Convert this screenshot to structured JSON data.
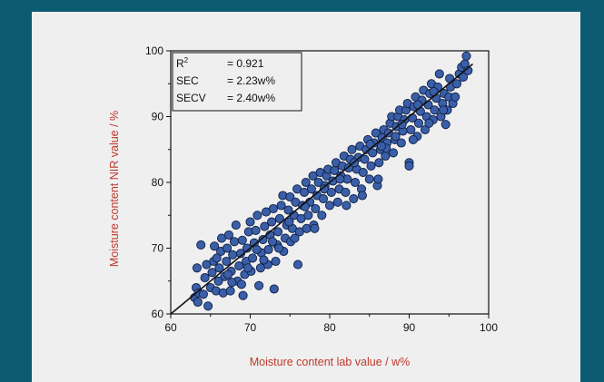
{
  "colors": {
    "background": "#0d5b73",
    "panel": "#efefef",
    "marker_fill": "#3a5fa8",
    "marker_stroke": "#0f1f45",
    "axis_title": "#c0392b",
    "fit_line": "#111111"
  },
  "chart_data": {
    "type": "scatter",
    "title": "",
    "xlabel": "Moisture content lab value / w%",
    "ylabel": "Moisture content NIR value / %",
    "xlim": [
      60,
      100
    ],
    "ylim": [
      60,
      100
    ],
    "x_ticks": [
      "60",
      "70",
      "80",
      "90",
      "100"
    ],
    "y_ticks": [
      "60",
      "70",
      "80",
      "90",
      "100"
    ],
    "grid": false,
    "legend_position": "top-left",
    "stats": [
      {
        "label": "R",
        "sup": "2",
        "value": "= 0.921"
      },
      {
        "label": "SEC",
        "sup": "",
        "value": "= 2.23w%"
      },
      {
        "label": "SECV",
        "sup": "",
        "value": "= 2.40w%"
      }
    ],
    "fit_line": {
      "x": [
        60,
        98
      ],
      "y": [
        60,
        98
      ]
    },
    "series": [
      {
        "marker": "circle",
        "points": [
          [
            63.0,
            62.5
          ],
          [
            63.2,
            64.0
          ],
          [
            63.4,
            61.8
          ],
          [
            63.5,
            63.2
          ],
          [
            63.3,
            67.0
          ],
          [
            63.8,
            70.5
          ],
          [
            64.1,
            63.0
          ],
          [
            64.3,
            65.5
          ],
          [
            64.5,
            67.5
          ],
          [
            64.7,
            61.2
          ],
          [
            65.0,
            64.0
          ],
          [
            65.2,
            66.3
          ],
          [
            65.4,
            68.0
          ],
          [
            65.5,
            70.3
          ],
          [
            65.7,
            63.5
          ],
          [
            66.0,
            65.0
          ],
          [
            66.1,
            67.0
          ],
          [
            66.3,
            69.5
          ],
          [
            66.4,
            71.5
          ],
          [
            66.6,
            63.2
          ],
          [
            66.8,
            65.7
          ],
          [
            67.0,
            68.0
          ],
          [
            67.1,
            70.0
          ],
          [
            67.3,
            72.0
          ],
          [
            67.5,
            63.5
          ],
          [
            67.6,
            66.5
          ],
          [
            67.8,
            69.0
          ],
          [
            68.0,
            71.0
          ],
          [
            68.2,
            73.5
          ],
          [
            68.4,
            65.0
          ],
          [
            68.6,
            67.3
          ],
          [
            68.8,
            69.2
          ],
          [
            69.0,
            71.2
          ],
          [
            69.1,
            62.8
          ],
          [
            69.3,
            66.0
          ],
          [
            69.5,
            68.0
          ],
          [
            69.6,
            70.0
          ],
          [
            69.8,
            72.5
          ],
          [
            70.0,
            74.0
          ],
          [
            70.1,
            66.5
          ],
          [
            70.3,
            68.5
          ],
          [
            70.5,
            70.8
          ],
          [
            70.7,
            72.7
          ],
          [
            70.9,
            75.0
          ],
          [
            71.1,
            64.3
          ],
          [
            71.3,
            67.0
          ],
          [
            71.4,
            69.3
          ],
          [
            71.6,
            71.3
          ],
          [
            71.8,
            73.3
          ],
          [
            72.0,
            75.5
          ],
          [
            72.2,
            67.5
          ],
          [
            72.3,
            69.8
          ],
          [
            72.5,
            72.0
          ],
          [
            72.7,
            74.0
          ],
          [
            72.9,
            76.0
          ],
          [
            73.0,
            63.8
          ],
          [
            73.2,
            68.0
          ],
          [
            73.4,
            70.5
          ],
          [
            73.5,
            72.5
          ],
          [
            73.7,
            74.5
          ],
          [
            73.9,
            76.5
          ],
          [
            74.1,
            78.0
          ],
          [
            74.2,
            69.5
          ],
          [
            74.4,
            71.5
          ],
          [
            74.6,
            73.5
          ],
          [
            74.8,
            75.8
          ],
          [
            75.0,
            77.8
          ],
          [
            75.1,
            71.0
          ],
          [
            75.3,
            73.0
          ],
          [
            75.5,
            75.0
          ],
          [
            75.7,
            77.0
          ],
          [
            75.9,
            79.0
          ],
          [
            76.0,
            67.5
          ],
          [
            76.2,
            72.5
          ],
          [
            76.4,
            74.5
          ],
          [
            76.6,
            76.5
          ],
          [
            76.8,
            78.5
          ],
          [
            77.0,
            80.0
          ],
          [
            77.1,
            73.0
          ],
          [
            77.3,
            75.0
          ],
          [
            77.5,
            77.0
          ],
          [
            77.7,
            79.0
          ],
          [
            77.9,
            81.0
          ],
          [
            78.0,
            73.5
          ],
          [
            78.2,
            76.0
          ],
          [
            78.4,
            78.0
          ],
          [
            78.6,
            80.0
          ],
          [
            78.8,
            81.5
          ],
          [
            79.0,
            75.0
          ],
          [
            79.2,
            77.5
          ],
          [
            79.4,
            79.5
          ],
          [
            79.6,
            81.0
          ],
          [
            79.8,
            82.0
          ],
          [
            80.0,
            76.5
          ],
          [
            80.2,
            78.5
          ],
          [
            80.4,
            80.2
          ],
          [
            80.6,
            81.8
          ],
          [
            80.8,
            83.0
          ],
          [
            81.0,
            77.0
          ],
          [
            81.2,
            79.0
          ],
          [
            81.4,
            81.0
          ],
          [
            81.6,
            82.5
          ],
          [
            81.8,
            84.0
          ],
          [
            82.0,
            78.5
          ],
          [
            82.2,
            80.5
          ],
          [
            82.4,
            82.2
          ],
          [
            82.6,
            83.5
          ],
          [
            82.8,
            85.0
          ],
          [
            83.0,
            77.5
          ],
          [
            83.2,
            80.0
          ],
          [
            83.4,
            82.0
          ],
          [
            83.6,
            83.8
          ],
          [
            83.8,
            85.5
          ],
          [
            84.0,
            79.0
          ],
          [
            84.2,
            81.5
          ],
          [
            84.4,
            83.5
          ],
          [
            84.6,
            85.0
          ],
          [
            84.8,
            86.5
          ],
          [
            85.0,
            80.5
          ],
          [
            85.2,
            82.5
          ],
          [
            85.4,
            84.5
          ],
          [
            85.6,
            86.0
          ],
          [
            85.8,
            87.5
          ],
          [
            86.0,
            79.5
          ],
          [
            86.2,
            83.0
          ],
          [
            86.4,
            85.0
          ],
          [
            86.6,
            86.8
          ],
          [
            86.8,
            88.0
          ],
          [
            87.0,
            84.0
          ],
          [
            87.2,
            86.0
          ],
          [
            87.4,
            87.5
          ],
          [
            87.6,
            89.0
          ],
          [
            87.8,
            90.0
          ],
          [
            88.0,
            84.5
          ],
          [
            88.2,
            86.5
          ],
          [
            88.4,
            88.5
          ],
          [
            88.6,
            90.0
          ],
          [
            88.8,
            91.0
          ],
          [
            89.0,
            86.0
          ],
          [
            89.2,
            87.8
          ],
          [
            89.4,
            89.5
          ],
          [
            89.6,
            91.0
          ],
          [
            89.8,
            92.0
          ],
          [
            90.0,
            83.0
          ],
          [
            90.0,
            82.5
          ],
          [
            90.2,
            88.0
          ],
          [
            90.4,
            89.8
          ],
          [
            90.6,
            91.5
          ],
          [
            90.8,
            93.0
          ],
          [
            91.0,
            87.0
          ],
          [
            91.2,
            89.0
          ],
          [
            91.4,
            90.8
          ],
          [
            91.6,
            92.5
          ],
          [
            91.8,
            94.0
          ],
          [
            92.0,
            88.0
          ],
          [
            92.2,
            90.0
          ],
          [
            92.4,
            91.8
          ],
          [
            92.6,
            93.5
          ],
          [
            92.8,
            95.0
          ],
          [
            93.0,
            89.5
          ],
          [
            93.2,
            91.0
          ],
          [
            93.4,
            92.8
          ],
          [
            93.6,
            94.5
          ],
          [
            93.8,
            96.5
          ],
          [
            94.0,
            90.0
          ],
          [
            94.2,
            92.0
          ],
          [
            94.4,
            93.5
          ],
          [
            94.6,
            88.8
          ],
          [
            94.8,
            91.0
          ],
          [
            95.0,
            93.0
          ],
          [
            95.2,
            94.5
          ],
          [
            95.5,
            92.0
          ],
          [
            95.8,
            93.0
          ],
          [
            96.0,
            95.0
          ],
          [
            96.3,
            96.5
          ],
          [
            96.6,
            97.5
          ],
          [
            96.8,
            96.0
          ],
          [
            97.0,
            98.0
          ],
          [
            97.2,
            99.2
          ],
          [
            97.4,
            97.0
          ],
          [
            65.8,
            68.5
          ],
          [
            67.2,
            66.0
          ],
          [
            68.9,
            64.5
          ],
          [
            70.8,
            69.8
          ],
          [
            72.8,
            71.0
          ],
          [
            74.9,
            74.0
          ],
          [
            76.9,
            76.3
          ],
          [
            79.3,
            79.0
          ],
          [
            81.3,
            80.5
          ],
          [
            83.1,
            83.0
          ],
          [
            85.1,
            85.8
          ],
          [
            87.1,
            85.2
          ],
          [
            89.1,
            88.8
          ],
          [
            91.1,
            91.8
          ],
          [
            93.1,
            93.8
          ],
          [
            95.1,
            95.8
          ],
          [
            78.1,
            73.0
          ],
          [
            82.1,
            76.5
          ],
          [
            84.1,
            78.0
          ],
          [
            86.1,
            80.5
          ],
          [
            75.6,
            71.5
          ],
          [
            73.6,
            70.0
          ],
          [
            71.7,
            68.2
          ],
          [
            69.7,
            67.0
          ],
          [
            67.7,
            64.8
          ],
          [
            90.5,
            86.5
          ],
          [
            92.5,
            89.0
          ],
          [
            94.3,
            91.0
          ],
          [
            88.3,
            87.0
          ],
          [
            86.5,
            85.5
          ]
        ]
      }
    ]
  }
}
